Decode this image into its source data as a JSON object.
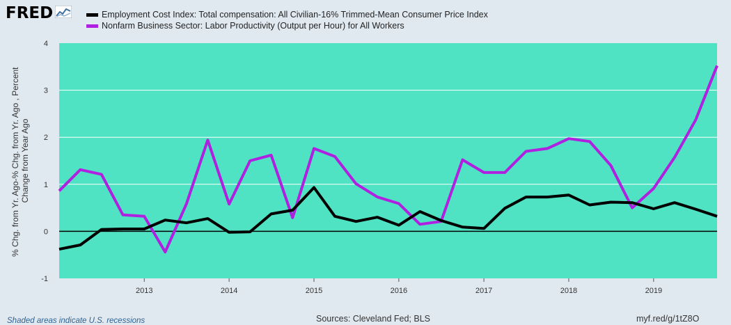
{
  "header": {
    "logo_text": "FRED",
    "logo_icon": "line-chart-icon"
  },
  "colors": {
    "plot_background": "#4fe3c3",
    "page_background": "#e1e9f0",
    "series_1": "#000000",
    "series_2": "#b020e0"
  },
  "chart_data": {
    "type": "line",
    "title": "",
    "ylabel": "% Chg. from Yr. Ago-% Chg. from Yr. Ago , Percent Change from Year Ago",
    "ylabel_lines": [
      "% Chg. from Yr. Ago-% Chg. from Yr. Ago , Percent",
      "Change from Year Ago"
    ],
    "xlabel": "",
    "ylim": [
      -1,
      4
    ],
    "yticks": [
      -1,
      0,
      1,
      2,
      3,
      4
    ],
    "xlim": [
      "2012-01-01",
      "2019-10-01"
    ],
    "xticks": [
      "2013",
      "2014",
      "2015",
      "2016",
      "2017",
      "2018",
      "2019"
    ],
    "grid": true,
    "zero_line": true,
    "legend_position": "top-left",
    "x": [
      "2012-01-01",
      "2012-04-01",
      "2012-07-01",
      "2012-10-01",
      "2013-01-01",
      "2013-04-01",
      "2013-07-01",
      "2013-10-01",
      "2014-01-01",
      "2014-04-01",
      "2014-07-01",
      "2014-10-01",
      "2015-01-01",
      "2015-04-01",
      "2015-07-01",
      "2015-10-01",
      "2016-01-01",
      "2016-04-01",
      "2016-07-01",
      "2016-10-01",
      "2017-01-01",
      "2017-04-01",
      "2017-07-01",
      "2017-10-01",
      "2018-01-01",
      "2018-04-01",
      "2018-07-01",
      "2018-10-01",
      "2019-01-01",
      "2019-04-01",
      "2019-07-01",
      "2019-10-01"
    ],
    "series": [
      {
        "name": "Employment Cost Index: Total compensation: All Civilian-16% Trimmed-Mean Consumer Price Index",
        "values": [
          -0.38,
          -0.29,
          0.04,
          0.05,
          0.05,
          0.24,
          0.18,
          0.27,
          -0.02,
          -0.01,
          0.37,
          0.45,
          0.93,
          0.32,
          0.21,
          0.3,
          0.13,
          0.42,
          0.23,
          0.09,
          0.06,
          0.49,
          0.73,
          0.73,
          0.77,
          0.56,
          0.62,
          0.61,
          0.48,
          0.61,
          0.47,
          0.32
        ]
      },
      {
        "name": "Nonfarm Business Sector: Labor Productivity (Output per Hour) for All Workers",
        "values": [
          0.86,
          1.31,
          1.21,
          0.35,
          0.32,
          -0.44,
          0.58,
          1.94,
          0.58,
          1.5,
          1.62,
          0.29,
          1.76,
          1.59,
          1.01,
          0.73,
          0.59,
          0.15,
          0.21,
          1.52,
          1.25,
          1.25,
          1.7,
          1.76,
          1.97,
          1.91,
          1.4,
          0.5,
          0.91,
          1.57,
          2.37,
          3.52
        ]
      }
    ]
  },
  "footer": {
    "recessions_note": "Shaded areas indicate U.S. recessions",
    "sources": "Sources: Cleveland Fed; BLS",
    "short_url": "myf.red/g/1tZ8O"
  }
}
